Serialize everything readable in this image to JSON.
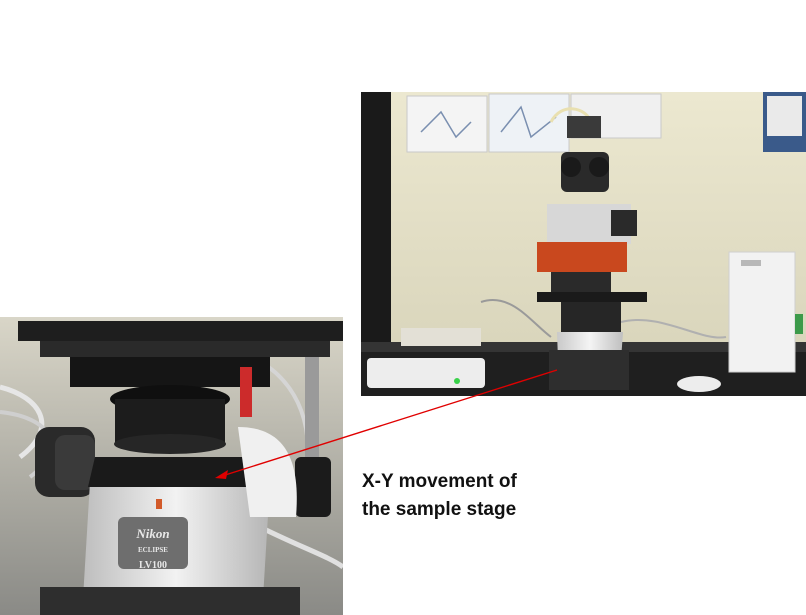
{
  "caption": {
    "line1": "X-Y movement of",
    "line2": "the sample stage"
  },
  "colors": {
    "annotation_arrow": "#e00000",
    "background": "#ffffff"
  },
  "branding": {
    "logo_text": "Nikon",
    "model_text": "ECLIPSE",
    "model_number": "LV100"
  }
}
